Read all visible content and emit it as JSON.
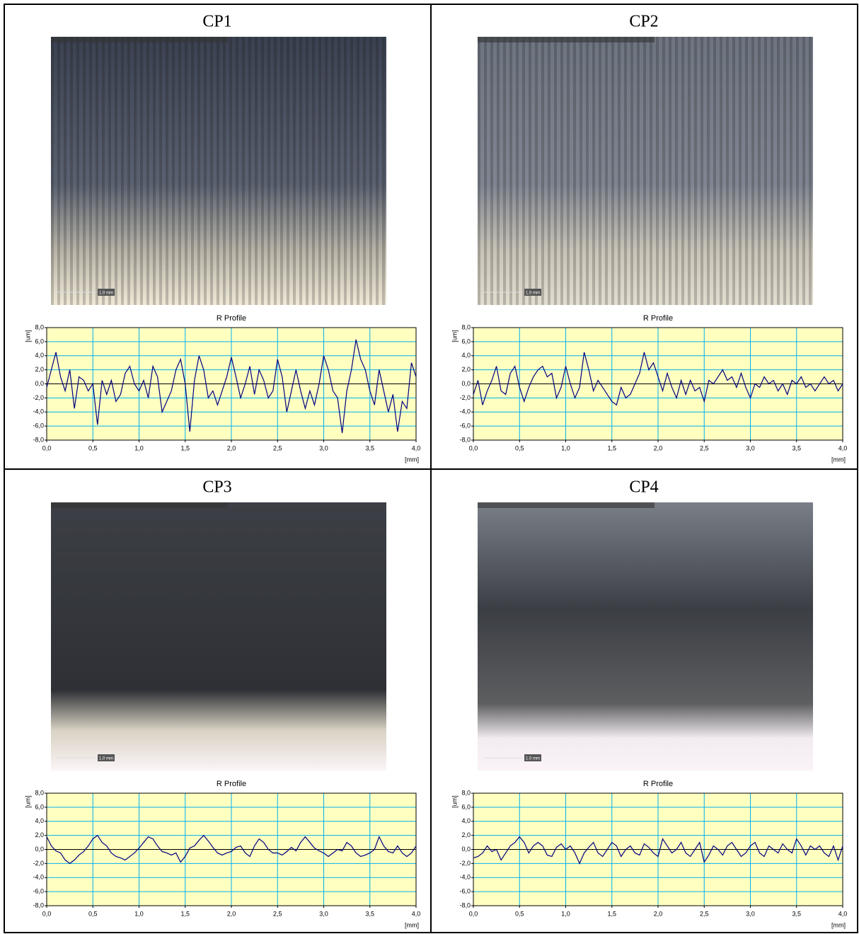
{
  "panels": [
    {
      "label": "CP1",
      "scale_bar": "1.0 mm"
    },
    {
      "label": "CP2",
      "scale_bar": "1.0 mm"
    },
    {
      "label": "CP3",
      "scale_bar": "1.0 mm"
    },
    {
      "label": "CP4",
      "scale_bar": "1.0 mm"
    }
  ],
  "chart_data": [
    {
      "type": "line",
      "title": "R Profile",
      "x_label": "[mm]",
      "y_label": "[um]",
      "color": "#000080",
      "background": "#ffffc0",
      "grid_color": "#00b0f0",
      "grid": true,
      "xlim": [
        0,
        4
      ],
      "ylim": [
        -8,
        8
      ],
      "xticks": [
        {
          "value": 0,
          "label": "0,0"
        },
        {
          "value": 0.5,
          "label": "0,5"
        },
        {
          "value": 1,
          "label": "1,0"
        },
        {
          "value": 1.5,
          "label": "1,5"
        },
        {
          "value": 2,
          "label": "2,0"
        },
        {
          "value": 2.5,
          "label": "2,5"
        },
        {
          "value": 3,
          "label": "3,0"
        },
        {
          "value": 3.5,
          "label": "3,5"
        },
        {
          "value": 4,
          "label": "4,0"
        }
      ],
      "yticks": [
        {
          "value": -8,
          "label": "-8,0"
        },
        {
          "value": -6,
          "label": "-6,0"
        },
        {
          "value": -4,
          "label": "-4,0"
        },
        {
          "value": -2,
          "label": "-2,0"
        },
        {
          "value": 0,
          "label": "0,0"
        },
        {
          "value": 2,
          "label": "2,0"
        },
        {
          "value": 4,
          "label": "4,0"
        },
        {
          "value": 6,
          "label": "6,0"
        },
        {
          "value": 8,
          "label": "8,0"
        }
      ],
      "x": [
        0,
        0.05,
        0.1,
        0.15,
        0.2,
        0.25,
        0.3,
        0.35,
        0.4,
        0.45,
        0.5,
        0.55,
        0.6,
        0.65,
        0.7,
        0.75,
        0.8,
        0.85,
        0.9,
        0.95,
        1,
        1.05,
        1.1,
        1.15,
        1.2,
        1.25,
        1.3,
        1.35,
        1.4,
        1.45,
        1.5,
        1.55,
        1.6,
        1.65,
        1.7,
        1.75,
        1.8,
        1.85,
        1.9,
        1.95,
        2,
        2.05,
        2.1,
        2.15,
        2.2,
        2.25,
        2.3,
        2.35,
        2.4,
        2.45,
        2.5,
        2.55,
        2.6,
        2.65,
        2.7,
        2.75,
        2.8,
        2.85,
        2.9,
        2.95,
        3,
        3.05,
        3.1,
        3.15,
        3.2,
        3.25,
        3.3,
        3.35,
        3.4,
        3.45,
        3.5,
        3.55,
        3.6,
        3.65,
        3.7,
        3.75,
        3.8,
        3.85,
        3.9,
        3.95,
        4
      ],
      "values": [
        -0.5,
        2,
        4.5,
        1,
        -1,
        2,
        -3.5,
        1,
        0.5,
        -1,
        0,
        -5.8,
        0.5,
        -1.5,
        0.5,
        -2.5,
        -1.5,
        1.5,
        2.5,
        0,
        -1,
        0.5,
        -2,
        2.5,
        1,
        -4,
        -2.5,
        -1,
        2,
        3.5,
        0,
        -6.8,
        0.5,
        4,
        2,
        -2,
        -1,
        -3,
        -1,
        1,
        3.8,
        1,
        -2,
        0,
        2.5,
        -1.5,
        2,
        0.5,
        -2,
        -1,
        3.5,
        1,
        -4,
        -1,
        2,
        -1,
        -3.5,
        -1,
        -3,
        0,
        4,
        2,
        -1,
        -2,
        -7,
        -1,
        2,
        6.3,
        3.5,
        2,
        -1,
        -3,
        2,
        -1,
        -4,
        -1.5,
        -6.8,
        -2.5,
        -3.5,
        3,
        1
      ]
    },
    {
      "type": "line",
      "title": "R Profile",
      "x_label": "[mm]",
      "y_label": "[um]",
      "color": "#000080",
      "background": "#ffffc0",
      "grid_color": "#00b0f0",
      "grid": true,
      "xlim": [
        0,
        4
      ],
      "ylim": [
        -8,
        8
      ],
      "xticks": [
        {
          "value": 0,
          "label": "0,0"
        },
        {
          "value": 0.5,
          "label": "0,5"
        },
        {
          "value": 1,
          "label": "1,0"
        },
        {
          "value": 1.5,
          "label": "1,5"
        },
        {
          "value": 2,
          "label": "2,0"
        },
        {
          "value": 2.5,
          "label": "2,5"
        },
        {
          "value": 3,
          "label": "3,0"
        },
        {
          "value": 3.5,
          "label": "3,5"
        },
        {
          "value": 4,
          "label": "4,0"
        }
      ],
      "yticks": [
        {
          "value": -8,
          "label": "-8,0"
        },
        {
          "value": -6,
          "label": "-6,0"
        },
        {
          "value": -4,
          "label": "-4,0"
        },
        {
          "value": -2,
          "label": "-2,0"
        },
        {
          "value": 0,
          "label": "0,0"
        },
        {
          "value": 2,
          "label": "2,0"
        },
        {
          "value": 4,
          "label": "4,0"
        },
        {
          "value": 6,
          "label": "6,0"
        },
        {
          "value": 8,
          "label": "8,0"
        }
      ],
      "x": [
        0,
        0.05,
        0.1,
        0.15,
        0.2,
        0.25,
        0.3,
        0.35,
        0.4,
        0.45,
        0.5,
        0.55,
        0.6,
        0.65,
        0.7,
        0.75,
        0.8,
        0.85,
        0.9,
        0.95,
        1,
        1.05,
        1.1,
        1.15,
        1.2,
        1.25,
        1.3,
        1.35,
        1.4,
        1.45,
        1.5,
        1.55,
        1.6,
        1.65,
        1.7,
        1.75,
        1.8,
        1.85,
        1.9,
        1.95,
        2,
        2.05,
        2.1,
        2.15,
        2.2,
        2.25,
        2.3,
        2.35,
        2.4,
        2.45,
        2.5,
        2.55,
        2.6,
        2.65,
        2.7,
        2.75,
        2.8,
        2.85,
        2.9,
        2.95,
        3,
        3.05,
        3.1,
        3.15,
        3.2,
        3.25,
        3.3,
        3.35,
        3.4,
        3.45,
        3.5,
        3.55,
        3.6,
        3.65,
        3.7,
        3.75,
        3.8,
        3.85,
        3.9,
        3.95,
        4
      ],
      "values": [
        -1.5,
        0.5,
        -3,
        -1,
        0.5,
        2.5,
        -1,
        -1.5,
        1.5,
        2.5,
        -0.5,
        -2.5,
        -0.5,
        1,
        2,
        2.5,
        1,
        1.5,
        -2,
        -0.5,
        2.5,
        0,
        -2,
        -0.5,
        4.5,
        2,
        -1,
        0.5,
        -0.5,
        -1.5,
        -2.5,
        -3,
        -0.5,
        -2,
        -1.5,
        0,
        1.5,
        4.5,
        2,
        3,
        1,
        -1,
        1.5,
        -0.5,
        -2,
        0.5,
        -1.5,
        0.5,
        -1,
        -0.5,
        -2.5,
        0.5,
        0,
        1,
        2,
        0.5,
        1,
        -0.5,
        1.5,
        -0.5,
        -2,
        0,
        -0.5,
        1,
        0,
        0.5,
        -1,
        0,
        -1.5,
        0.5,
        0,
        1,
        -0.5,
        0,
        -1,
        0,
        1,
        0,
        0.5,
        -1,
        0
      ]
    },
    {
      "type": "line",
      "title": "R Profile",
      "x_label": "[mm]",
      "y_label": "[um]",
      "color": "#000080",
      "background": "#ffffc0",
      "grid_color": "#00b0f0",
      "grid": true,
      "xlim": [
        0,
        4
      ],
      "ylim": [
        -8,
        8
      ],
      "xticks": [
        {
          "value": 0,
          "label": "0,0"
        },
        {
          "value": 0.5,
          "label": "0,5"
        },
        {
          "value": 1,
          "label": "1,0"
        },
        {
          "value": 1.5,
          "label": "1,5"
        },
        {
          "value": 2,
          "label": "2,0"
        },
        {
          "value": 2.5,
          "label": "2,5"
        },
        {
          "value": 3,
          "label": "3,0"
        },
        {
          "value": 3.5,
          "label": "3,5"
        },
        {
          "value": 4,
          "label": "4,0"
        }
      ],
      "yticks": [
        {
          "value": -8,
          "label": "-8,0"
        },
        {
          "value": -6,
          "label": "-6,0"
        },
        {
          "value": -4,
          "label": "-4,0"
        },
        {
          "value": -2,
          "label": "-2,0"
        },
        {
          "value": 0,
          "label": "0,0"
        },
        {
          "value": 2,
          "label": "2,0"
        },
        {
          "value": 4,
          "label": "4,0"
        },
        {
          "value": 6,
          "label": "6,0"
        },
        {
          "value": 8,
          "label": "8,0"
        }
      ],
      "x": [
        0,
        0.05,
        0.1,
        0.15,
        0.2,
        0.25,
        0.3,
        0.35,
        0.4,
        0.45,
        0.5,
        0.55,
        0.6,
        0.65,
        0.7,
        0.75,
        0.8,
        0.85,
        0.9,
        0.95,
        1,
        1.05,
        1.1,
        1.15,
        1.2,
        1.25,
        1.3,
        1.35,
        1.4,
        1.45,
        1.5,
        1.55,
        1.6,
        1.65,
        1.7,
        1.75,
        1.8,
        1.85,
        1.9,
        1.95,
        2,
        2.05,
        2.1,
        2.15,
        2.2,
        2.25,
        2.3,
        2.35,
        2.4,
        2.45,
        2.5,
        2.55,
        2.6,
        2.65,
        2.7,
        2.75,
        2.8,
        2.85,
        2.9,
        2.95,
        3,
        3.05,
        3.1,
        3.15,
        3.2,
        3.25,
        3.3,
        3.35,
        3.4,
        3.45,
        3.5,
        3.55,
        3.6,
        3.65,
        3.7,
        3.75,
        3.8,
        3.85,
        3.9,
        3.95,
        4
      ],
      "values": [
        1.8,
        0.5,
        -0.2,
        -0.5,
        -1.5,
        -2,
        -1.5,
        -0.8,
        -0.3,
        0.5,
        1.5,
        2,
        1,
        0.5,
        -0.5,
        -1,
        -1.2,
        -1.5,
        -1,
        -0.5,
        0.2,
        1,
        1.8,
        1.5,
        0.5,
        -0.3,
        -0.5,
        -0.8,
        -0.5,
        -1.8,
        -1,
        0.2,
        0.5,
        1.3,
        2,
        1.2,
        0.3,
        -0.5,
        -0.8,
        -0.5,
        -0.3,
        0.3,
        0.5,
        -0.5,
        -1,
        0.5,
        1.5,
        1,
        0,
        -0.5,
        -0.5,
        -0.8,
        -0.3,
        0.3,
        -0.2,
        1,
        1.8,
        1,
        0.2,
        -0.2,
        -0.5,
        -1,
        -0.5,
        0,
        -0.2,
        1,
        0.5,
        -0.5,
        -1,
        -0.8,
        -0.5,
        0,
        1.8,
        0.5,
        -0.3,
        -0.5,
        0.5,
        -0.5,
        -1,
        -0.5,
        0.5
      ]
    },
    {
      "type": "line",
      "title": "R Profile",
      "x_label": "[mm]",
      "y_label": "[um]",
      "color": "#000080",
      "background": "#ffffc0",
      "grid_color": "#00b0f0",
      "grid": true,
      "xlim": [
        0,
        4
      ],
      "ylim": [
        -8,
        8
      ],
      "xticks": [
        {
          "value": 0,
          "label": "0,0"
        },
        {
          "value": 0.5,
          "label": "0,5"
        },
        {
          "value": 1,
          "label": "1,0"
        },
        {
          "value": 1.5,
          "label": "1,5"
        },
        {
          "value": 2,
          "label": "2,0"
        },
        {
          "value": 2.5,
          "label": "2,5"
        },
        {
          "value": 3,
          "label": "3,0"
        },
        {
          "value": 3.5,
          "label": "3,5"
        },
        {
          "value": 4,
          "label": "4,0"
        }
      ],
      "yticks": [
        {
          "value": -8,
          "label": "-8,0"
        },
        {
          "value": -6,
          "label": "-6,0"
        },
        {
          "value": -4,
          "label": "-4,0"
        },
        {
          "value": -2,
          "label": "-2,0"
        },
        {
          "value": 0,
          "label": "0,0"
        },
        {
          "value": 2,
          "label": "2,0"
        },
        {
          "value": 4,
          "label": "4,0"
        },
        {
          "value": 6,
          "label": "6,0"
        },
        {
          "value": 8,
          "label": "8,0"
        }
      ],
      "x": [
        0,
        0.05,
        0.1,
        0.15,
        0.2,
        0.25,
        0.3,
        0.35,
        0.4,
        0.45,
        0.5,
        0.55,
        0.6,
        0.65,
        0.7,
        0.75,
        0.8,
        0.85,
        0.9,
        0.95,
        1,
        1.05,
        1.1,
        1.15,
        1.2,
        1.25,
        1.3,
        1.35,
        1.4,
        1.45,
        1.5,
        1.55,
        1.6,
        1.65,
        1.7,
        1.75,
        1.8,
        1.85,
        1.9,
        1.95,
        2,
        2.05,
        2.1,
        2.15,
        2.2,
        2.25,
        2.3,
        2.35,
        2.4,
        2.45,
        2.5,
        2.55,
        2.6,
        2.65,
        2.7,
        2.75,
        2.8,
        2.85,
        2.9,
        2.95,
        3,
        3.05,
        3.1,
        3.15,
        3.2,
        3.25,
        3.3,
        3.35,
        3.4,
        3.45,
        3.5,
        3.55,
        3.6,
        3.65,
        3.7,
        3.75,
        3.8,
        3.85,
        3.9,
        3.95,
        4
      ],
      "values": [
        -1.2,
        -1,
        -0.5,
        0.5,
        -0.3,
        0,
        -1.5,
        -0.5,
        0.5,
        1,
        1.8,
        1,
        -0.5,
        0.5,
        1,
        0.5,
        -0.8,
        -1,
        0.3,
        0.8,
        0,
        0.5,
        -0.5,
        -2,
        -0.5,
        0.3,
        1,
        -0.5,
        -1,
        0,
        1,
        0.5,
        -1,
        0,
        0.5,
        -0.5,
        -0.8,
        0.8,
        0.3,
        -0.5,
        -1,
        1.5,
        0.5,
        -0.5,
        0,
        1,
        -0.5,
        -1,
        0,
        1,
        -1.8,
        -0.8,
        0.5,
        0,
        -0.8,
        0.5,
        1,
        0,
        -1,
        -0.5,
        0.5,
        1,
        -0.5,
        -1,
        0.5,
        0,
        -0.5,
        0.8,
        0,
        -0.5,
        1.5,
        0.5,
        -0.8,
        0.5,
        0,
        0.5,
        -0.5,
        -1,
        0.5,
        -1.5,
        0.5
      ]
    }
  ]
}
